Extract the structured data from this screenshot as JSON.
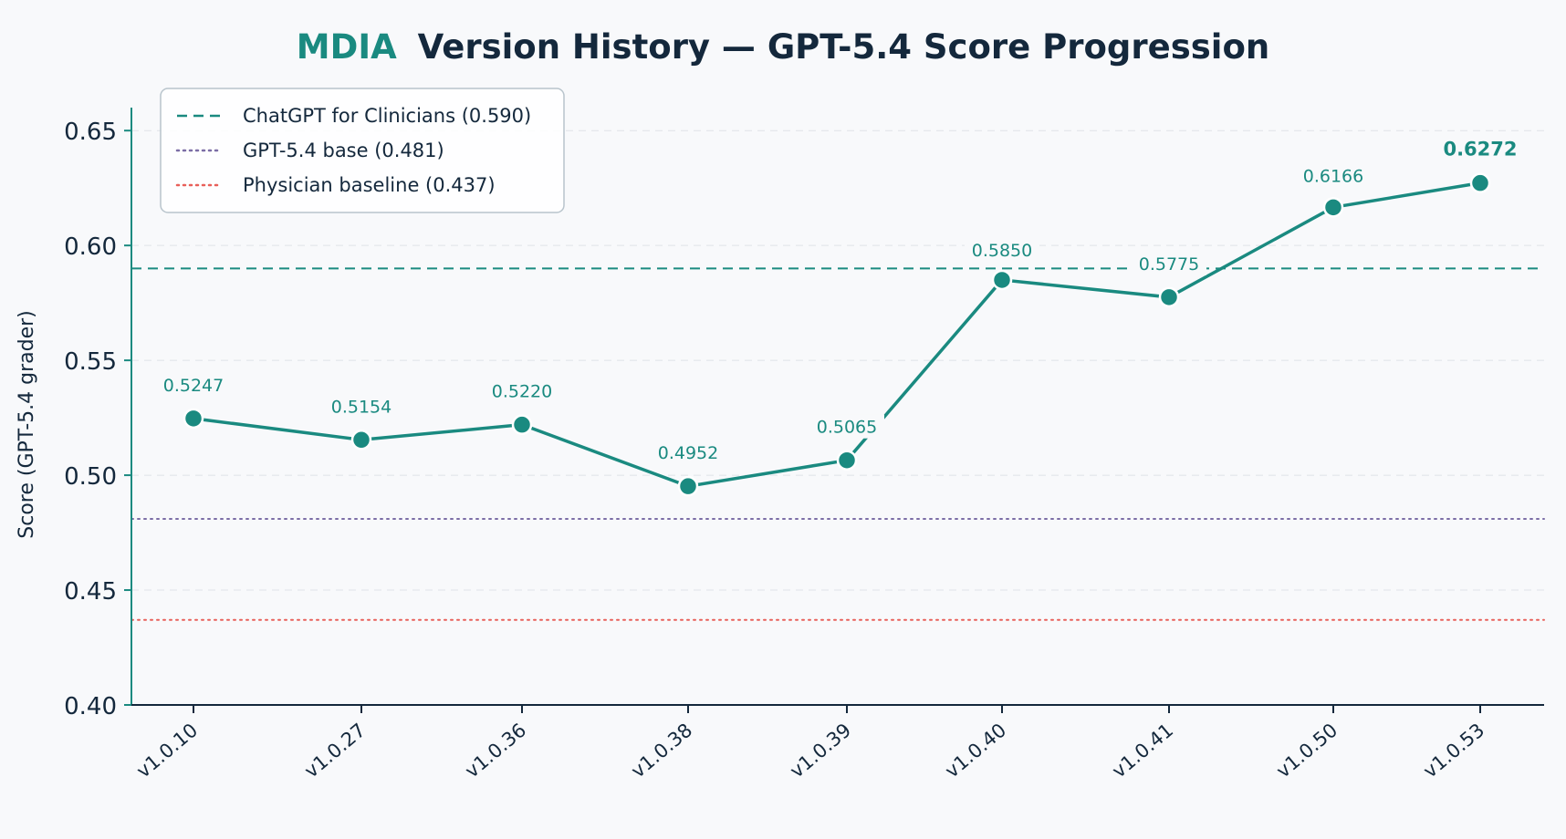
{
  "title": {
    "accent": "MDIA",
    "rest": "Version History — GPT-5.4 Score Progression",
    "accent_color": "#1a8a80",
    "color": "#14283c"
  },
  "chart_data": {
    "type": "line",
    "categories": [
      "v1.0.10",
      "v1.0.27",
      "v1.0.36",
      "v1.0.38",
      "v1.0.39",
      "v1.0.40",
      "v1.0.41",
      "v1.0.50",
      "v1.0.53"
    ],
    "series": [
      {
        "values": [
          0.5247,
          0.5154,
          0.522,
          0.4952,
          0.5065,
          0.585,
          0.5775,
          0.6166,
          0.6272
        ],
        "labels": [
          "0.5247",
          "0.5154",
          "0.5220",
          "0.4952",
          "0.5065",
          "0.5850",
          "0.5775",
          "0.6166",
          "0.6272"
        ],
        "color": "#1a8a80"
      }
    ],
    "reference_lines": [
      {
        "label": "ChatGPT for Clinicians (0.590)",
        "value": 0.59,
        "color": "#1a8a80",
        "style": "dashed"
      },
      {
        "label": "GPT-5.4 base (0.481)",
        "value": 0.481,
        "color": "#7c6ea6",
        "style": "dotted"
      },
      {
        "label": "Physician baseline (0.437)",
        "value": 0.437,
        "color": "#e8605a",
        "style": "dotted"
      }
    ],
    "ylabel": "Score (GPT-5.4 grader)",
    "xlabel": "",
    "ylim": [
      0.4,
      0.66
    ],
    "yticks": [
      "0.40",
      "0.45",
      "0.50",
      "0.55",
      "0.60",
      "0.65"
    ],
    "ytick_values": [
      0.4,
      0.45,
      0.5,
      0.55,
      0.6,
      0.65
    ],
    "grid": "horizontal",
    "legend_position": "top-left",
    "highlight_last_label": true,
    "axis_color": "#1a8a80",
    "text_color": "#14283c"
  }
}
